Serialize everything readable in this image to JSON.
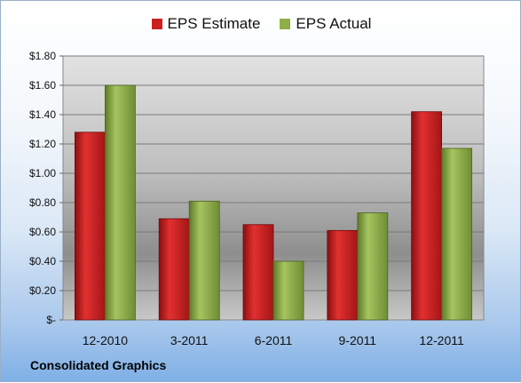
{
  "company": "Consolidated Graphics",
  "colors": {
    "estimate": "#cc1f1f",
    "actual": "#8fae48"
  },
  "chart_data": {
    "type": "bar",
    "categories": [
      "12-2010",
      "3-2011",
      "6-2011",
      "9-2011",
      "12-2011"
    ],
    "series": [
      {
        "name": "EPS Estimate",
        "values": [
          1.28,
          0.69,
          0.65,
          0.61,
          1.42
        ]
      },
      {
        "name": "EPS Actual",
        "values": [
          1.6,
          0.81,
          0.4,
          0.73,
          1.17
        ]
      }
    ],
    "ylim": [
      0,
      1.8
    ],
    "yticks": [
      0,
      0.2,
      0.4,
      0.6,
      0.8,
      1.0,
      1.2,
      1.4,
      1.6,
      1.8
    ],
    "ytick_labels": [
      "$-",
      "$0.20",
      "$0.40",
      "$0.60",
      "$0.80",
      "$1.00",
      "$1.20",
      "$1.40",
      "$1.60",
      "$1.80"
    ],
    "grid": true,
    "legend": "top-center"
  }
}
